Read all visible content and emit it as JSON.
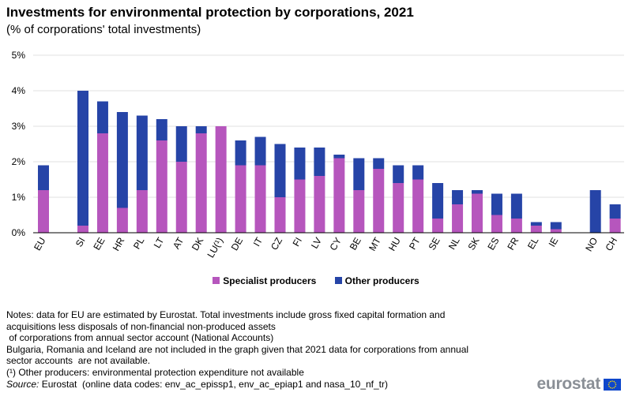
{
  "title": "Investments for environmental protection by corporations, 2021",
  "subtitle": "(% of corporations' total investments)",
  "colors": {
    "specialist": "#b656bd",
    "other": "#2644a7",
    "grid": "#e0e0e0",
    "axis": "#000000"
  },
  "chart_data": {
    "type": "bar",
    "stacked": true,
    "categories": [
      "EU",
      "SI",
      "EE",
      "HR",
      "PL",
      "LT",
      "AT",
      "DK",
      "LU(¹)",
      "DE",
      "IT",
      "CZ",
      "FI",
      "LV",
      "CY",
      "BE",
      "MT",
      "HU",
      "PT",
      "SE",
      "NL",
      "SK",
      "ES",
      "FR",
      "EL",
      "IE",
      "NO",
      "CH"
    ],
    "series": [
      {
        "name": "Specialist producers",
        "values": [
          1.2,
          0.2,
          2.8,
          0.7,
          1.2,
          2.6,
          2.0,
          2.8,
          3.0,
          1.9,
          1.9,
          1.0,
          1.5,
          1.6,
          2.1,
          1.2,
          1.8,
          1.4,
          1.5,
          0.4,
          0.8,
          1.1,
          0.5,
          0.4,
          0.2,
          0.1,
          0.0,
          0.4
        ]
      },
      {
        "name": "Other producers",
        "values": [
          0.7,
          3.8,
          0.9,
          2.7,
          2.1,
          0.6,
          1.0,
          0.2,
          0.0,
          0.7,
          0.8,
          1.5,
          0.9,
          0.8,
          0.1,
          0.9,
          0.3,
          0.5,
          0.4,
          1.0,
          0.4,
          0.1,
          0.6,
          0.7,
          0.1,
          0.2,
          1.2,
          0.4
        ]
      }
    ],
    "ylim": [
      0,
      5
    ],
    "yticks": [
      "0%",
      "1%",
      "2%",
      "3%",
      "4%",
      "5%"
    ],
    "xlabel": "",
    "ylabel": "",
    "grid": true,
    "legend_position": "bottom-center"
  },
  "legend": {
    "specialist": "Specialist producers",
    "other": "Other producers"
  },
  "notes": {
    "line1": "Notes: data for EU are estimated by Eurostat. Total investments include gross fixed capital formation and",
    "line2": "acquisitions less disposals of non-financial non-produced assets",
    "line3": " of corporations from annual sector account (National Accounts)",
    "line4": "Bulgaria, Romania and Iceland are not included in the graph given that 2021 data for corporations from annual",
    "line5": "sector accounts  are not available.",
    "footnote": "(¹) Other producers: environmental protection expenditure not available",
    "source_label": "Source:",
    "source_text": " Eurostat  (online data codes: env_ac_epissp1, env_ac_epiap1 and nasa_10_nf_tr)"
  },
  "logo": {
    "text": "eurostat"
  }
}
